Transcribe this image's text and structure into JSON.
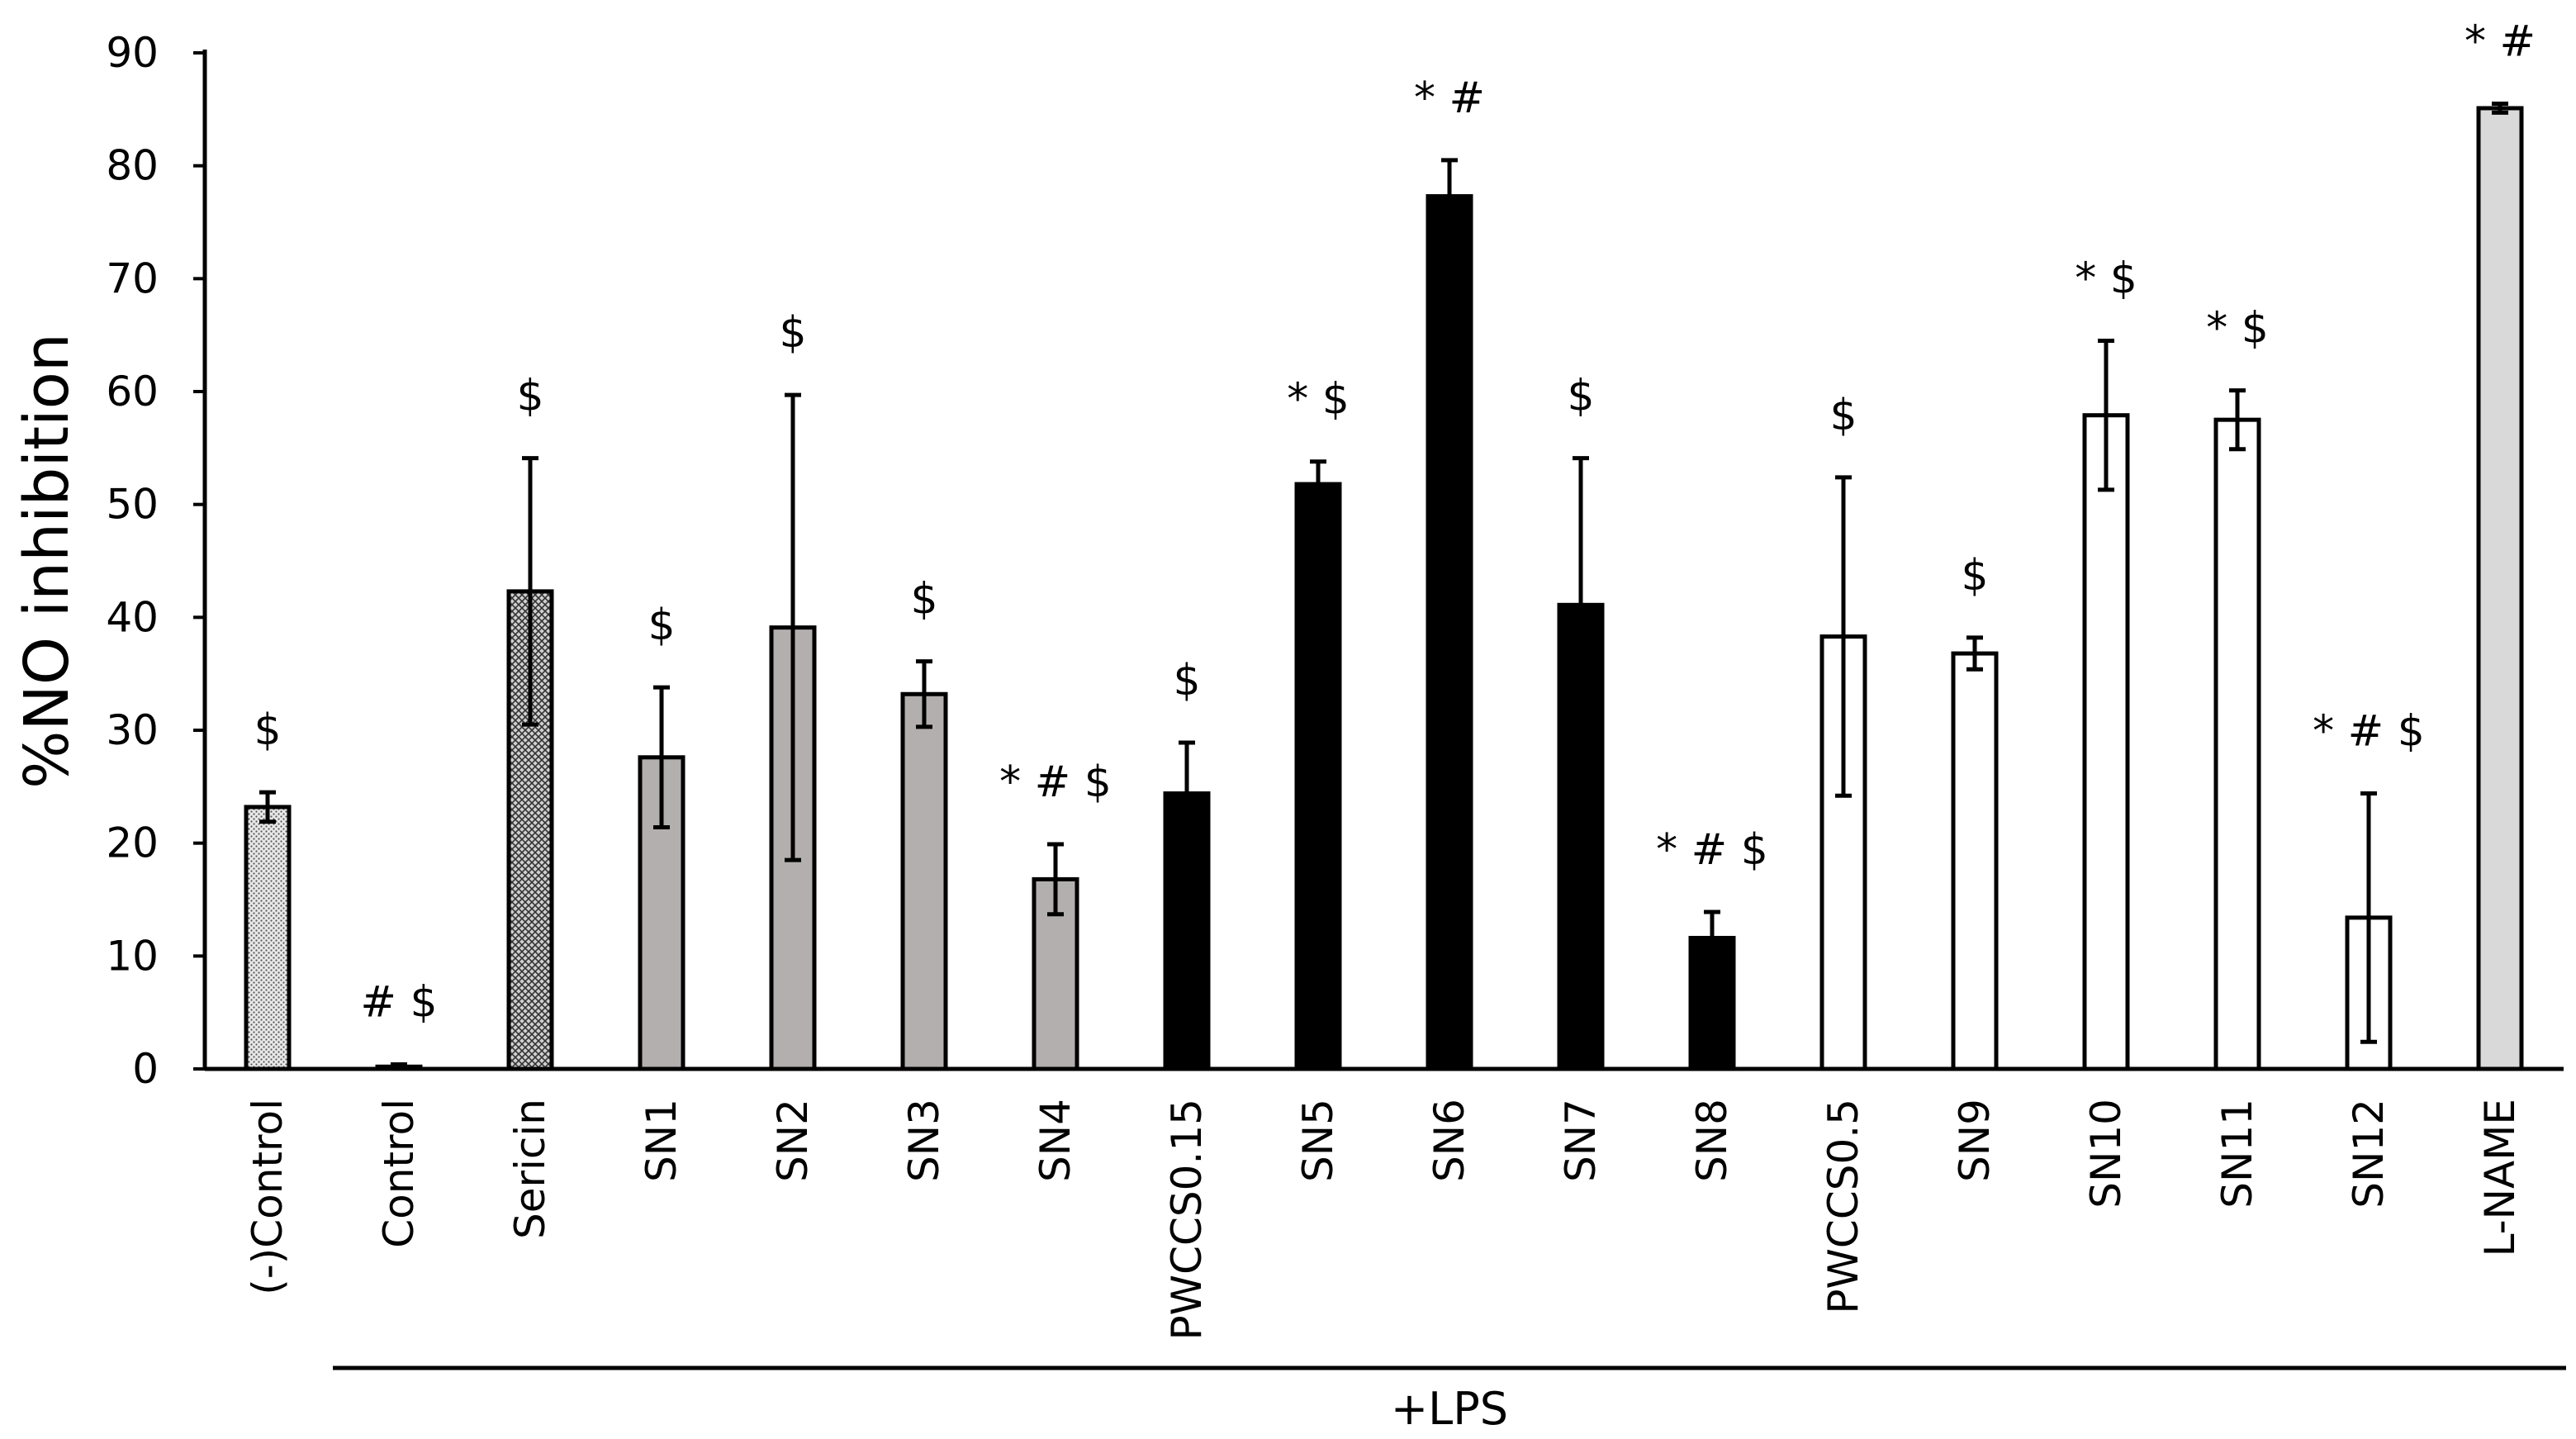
{
  "chart_data": {
    "type": "bar",
    "title": "",
    "xlabel": "",
    "ylabel": "%NO inhibition",
    "ylim": [
      0,
      90
    ],
    "yticks": [
      0,
      10,
      20,
      30,
      40,
      50,
      60,
      70,
      80,
      90
    ],
    "grid": false,
    "legend": "none",
    "categories": [
      "(-)Control",
      "Control",
      "Sericin",
      "SN1",
      "SN2",
      "SN3",
      "SN4",
      "PWCCS0.15",
      "SN5",
      "SN6",
      "SN7",
      "SN8",
      "PWCCS0.5",
      "SN9",
      "SN10",
      "SN11",
      "SN12",
      "L-NAME"
    ],
    "values": [
      23.2,
      0.2,
      42.3,
      27.6,
      39.1,
      33.2,
      16.8,
      24.4,
      51.8,
      77.3,
      41.1,
      11.6,
      38.3,
      36.8,
      57.9,
      57.5,
      13.4,
      85.1
    ],
    "error": [
      1.3,
      0.2,
      11.8,
      6.2,
      20.6,
      2.9,
      3.1,
      4.5,
      2.0,
      3.2,
      13.0,
      2.3,
      14.1,
      1.4,
      6.6,
      2.6,
      11.0,
      0.4
    ],
    "significance": [
      "$",
      "# $",
      "$",
      "$",
      "$",
      "$",
      "* # $",
      "$",
      "* $",
      "* #",
      "$",
      "* # $",
      "$",
      "$",
      "* $",
      "* $",
      "* # $",
      "* #"
    ],
    "fill_style": [
      "dotted",
      "white",
      "crosshatch",
      "gray",
      "gray",
      "gray",
      "gray",
      "black",
      "black",
      "black",
      "black",
      "black",
      "white",
      "white",
      "white",
      "white",
      "white",
      "lightgray"
    ],
    "group_bracket": {
      "label": "+LPS",
      "from": "Control",
      "to": "L-NAME"
    },
    "colors": {
      "gray": "#b3afae",
      "black": "#000000",
      "white": "#ffffff",
      "lightgray": "#d9d9d9"
    }
  }
}
